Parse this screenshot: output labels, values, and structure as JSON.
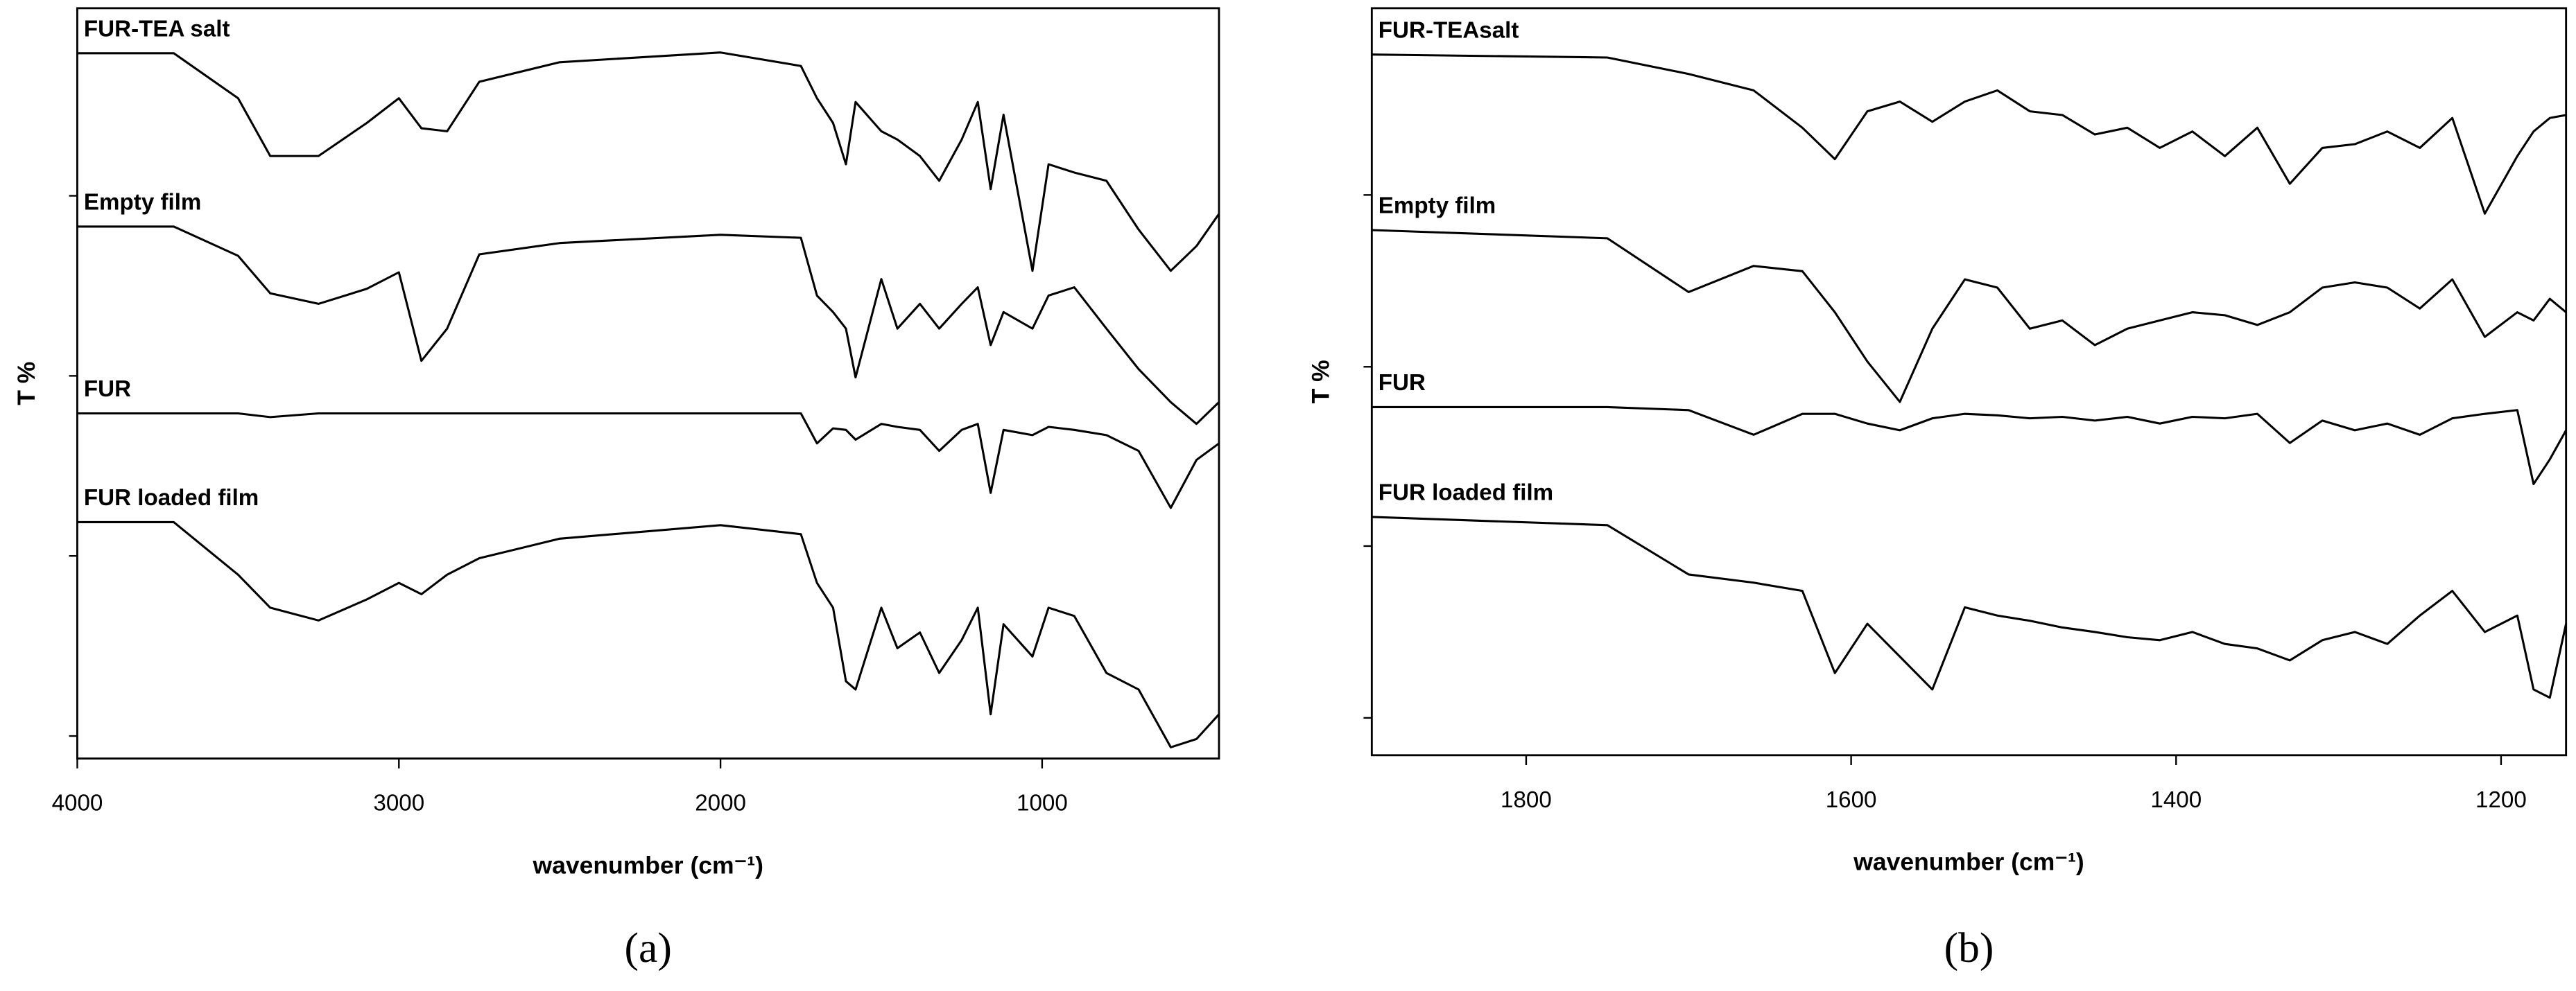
{
  "chart_data": [
    {
      "type": "line",
      "panel_label": "(a)",
      "x_label": "wavenumber (cm⁻¹)",
      "y_label": "T %",
      "xlim": [
        4000,
        450
      ],
      "xticks": [
        4000,
        3000,
        2000,
        1000
      ],
      "ylim": [
        0,
        100
      ],
      "yticks": [
        3,
        27,
        51,
        75
      ],
      "x": [
        4000,
        3700,
        3500,
        3400,
        3250,
        3100,
        3000,
        2930,
        2850,
        2750,
        2500,
        2000,
        1750,
        1700,
        1650,
        1610,
        1580,
        1500,
        1450,
        1380,
        1320,
        1250,
        1200,
        1160,
        1120,
        1030,
        980,
        900,
        800,
        700,
        600,
        520,
        450
      ],
      "series": [
        {
          "name": "FUR-TEA salt",
          "color": "#000000",
          "values": [
            94,
            94,
            88,
            80.3,
            80.3,
            84.7,
            88,
            84,
            83.6,
            90.2,
            92.8,
            94.1,
            92.3,
            88,
            84.7,
            79.2,
            87.5,
            83.6,
            82.5,
            80.3,
            77,
            82.5,
            87.5,
            75.9,
            85.8,
            65,
            79.2,
            78.1,
            77,
            70.5,
            65,
            68.3,
            72.6
          ]
        },
        {
          "name": "Empty film",
          "color": "#000000",
          "values": [
            70.9,
            70.9,
            67,
            62,
            60.6,
            62.6,
            64.8,
            53,
            57.3,
            67.2,
            68.7,
            69.8,
            69.4,
            61.7,
            59.5,
            57.3,
            50.8,
            63.9,
            57.3,
            60.6,
            57.3,
            60.6,
            62.8,
            55.1,
            59.5,
            57.3,
            61.7,
            62.8,
            57.3,
            51.9,
            47.5,
            44.6,
            47.5
          ]
        },
        {
          "name": "FUR",
          "color": "#000000",
          "values": [
            46,
            46,
            46,
            45.5,
            46,
            46,
            46,
            46,
            46,
            46,
            46,
            46,
            46,
            42,
            44,
            43.8,
            42.5,
            44.6,
            44.2,
            43.8,
            41,
            43.8,
            44.6,
            35.4,
            43.8,
            43.1,
            44.2,
            43.8,
            43.1,
            41,
            33.4,
            39.8,
            42
          ]
        },
        {
          "name": "FUR loaded film",
          "color": "#000000",
          "values": [
            31.5,
            31.5,
            24.5,
            20.1,
            18.4,
            21.2,
            23.4,
            21.9,
            24.5,
            26.7,
            29.3,
            31.1,
            29.9,
            23.4,
            20.1,
            10.3,
            9.2,
            20.1,
            14.7,
            16.8,
            11.4,
            15.8,
            20.1,
            5.9,
            17.9,
            13.6,
            20.1,
            19,
            11.4,
            9.2,
            1.5,
            2.6,
            5.9
          ]
        }
      ]
    },
    {
      "type": "line",
      "panel_label": "(b)",
      "x_label": "wavenumber (cm⁻¹)",
      "y_label": "T %",
      "xlim": [
        1895,
        1160
      ],
      "xticks": [
        1800,
        1600,
        1400,
        1200
      ],
      "ylim": [
        0,
        100
      ],
      "yticks": [
        5,
        28,
        52,
        75
      ],
      "x": [
        1895,
        1750,
        1700,
        1660,
        1630,
        1610,
        1590,
        1570,
        1550,
        1530,
        1510,
        1490,
        1470,
        1450,
        1430,
        1410,
        1390,
        1370,
        1350,
        1330,
        1310,
        1290,
        1270,
        1250,
        1230,
        1210,
        1190,
        1180,
        1170,
        1160
      ],
      "series": [
        {
          "name": "FUR-TEAsalt",
          "color": "#000000",
          "values": [
            93.8,
            93.4,
            91.2,
            89,
            84,
            79.8,
            86.2,
            87.5,
            84.8,
            87.5,
            89,
            86.2,
            85.7,
            83.1,
            84,
            81.3,
            83.5,
            80.2,
            84,
            76.5,
            81.3,
            81.8,
            83.5,
            81.3,
            85.3,
            72.5,
            80.2,
            83.5,
            85.3,
            85.7
          ]
        },
        {
          "name": "Empty film",
          "color": "#000000",
          "values": [
            70.3,
            69.2,
            62,
            65.5,
            64.8,
            59.3,
            52.7,
            47.3,
            57.1,
            63.7,
            62.6,
            57.1,
            58.2,
            54.9,
            57.1,
            58.2,
            59.3,
            58.9,
            57.6,
            59.3,
            62.6,
            63.3,
            62.6,
            59.8,
            63.7,
            56,
            59.3,
            58.2,
            61.1,
            59.3
          ]
        },
        {
          "name": "FUR",
          "color": "#000000",
          "values": [
            46.6,
            46.6,
            46.2,
            42.9,
            45.7,
            45.7,
            44.4,
            43.5,
            45.1,
            45.7,
            45.5,
            45.1,
            45.3,
            44.8,
            45.3,
            44.4,
            45.3,
            45.1,
            45.7,
            41.8,
            44.8,
            43.5,
            44.4,
            42.9,
            45.1,
            45.7,
            46.2,
            36.3,
            39.6,
            43.5
          ]
        },
        {
          "name": "FUR loaded film",
          "color": "#000000",
          "values": [
            31.9,
            30.8,
            24.2,
            23.1,
            22,
            11,
            17.6,
            13.2,
            8.8,
            19.8,
            18.7,
            18,
            17.1,
            16.5,
            15.8,
            15.4,
            16.5,
            14.9,
            14.3,
            12.7,
            15.4,
            16.5,
            14.9,
            18.7,
            22,
            16.5,
            18.7,
            8.8,
            7.7,
            17.6
          ]
        }
      ]
    }
  ]
}
